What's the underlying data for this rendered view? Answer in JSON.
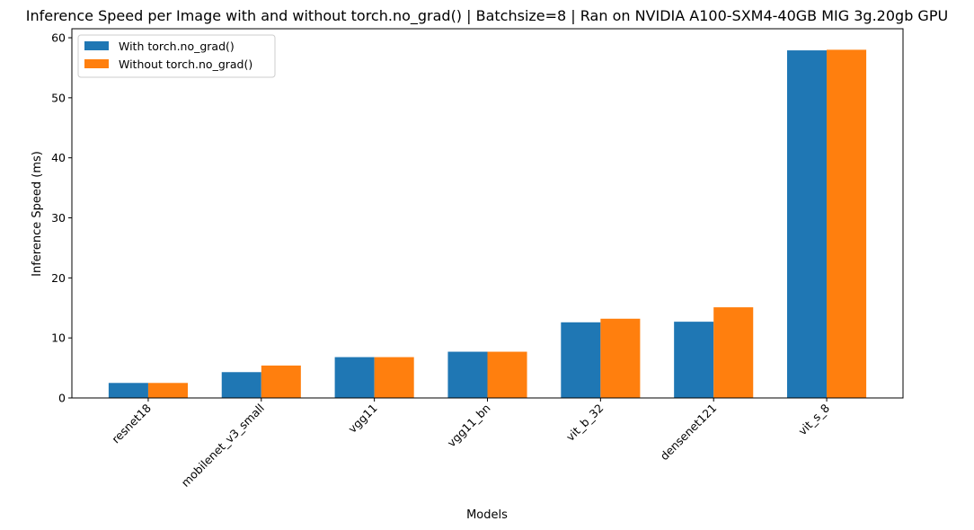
{
  "chart_data": {
    "type": "bar",
    "title": "Inference Speed per Image with and without torch.no_grad() | Batchsize=8 | Ran on NVIDIA A100-SXM4-40GB MIG 3g.20gb GPU",
    "xlabel": "Models",
    "ylabel": "Inference Speed (ms)",
    "categories": [
      "resnet18",
      "mobilenet_v3_small",
      "vgg11",
      "vgg11_bn",
      "vit_b_32",
      "densenet121",
      "vit_s_8"
    ],
    "series": [
      {
        "name": "With torch.no_grad()",
        "color": "#1f77b4",
        "values": [
          2.5,
          4.3,
          6.8,
          7.7,
          12.6,
          12.7,
          57.9
        ]
      },
      {
        "name": "Without torch.no_grad()",
        "color": "#ff7f0e",
        "values": [
          2.5,
          5.4,
          6.8,
          7.7,
          13.2,
          15.1,
          58.0
        ]
      }
    ],
    "ylim": [
      0,
      61.5
    ],
    "yticks": [
      0,
      10,
      20,
      30,
      40,
      50,
      60
    ],
    "legend_position": "top-left",
    "grid": false
  }
}
